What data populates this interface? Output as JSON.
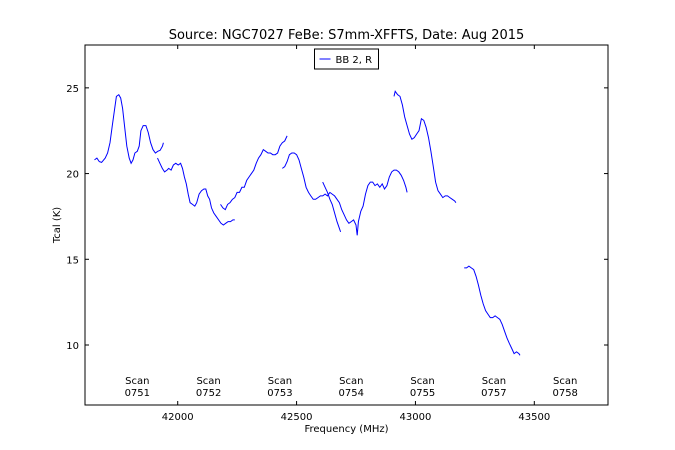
{
  "chart_data": {
    "type": "line",
    "title": "Source: NGC7027 FeBe: S7mm-XFFTS, Date: Aug 2015",
    "xlabel": "Frequency (MHz)",
    "ylabel": "Tcal (K)",
    "xlim": [
      41610,
      43810
    ],
    "ylim": [
      6.5,
      27.5
    ],
    "x_ticks": [
      42000,
      42500,
      43000,
      43500
    ],
    "y_ticks": [
      10,
      15,
      20,
      25
    ],
    "grid": false,
    "legend": {
      "placement": "top-center",
      "entries": [
        "BB 2, R"
      ]
    },
    "series_color": "#0000ff",
    "scan_labels": [
      {
        "line1": "Scan",
        "line2": "0751",
        "x": 41830
      },
      {
        "line1": "Scan",
        "line2": "0752",
        "x": 42130
      },
      {
        "line1": "Scan",
        "line2": "0753",
        "x": 42430
      },
      {
        "line1": "Scan",
        "line2": "0754",
        "x": 42730
      },
      {
        "line1": "Scan",
        "line2": "0755",
        "x": 43030
      },
      {
        "line1": "Scan",
        "line2": "0757",
        "x": 43330
      },
      {
        "line1": "Scan",
        "line2": "0758",
        "x": 43630
      }
    ],
    "series": [
      {
        "name": "BB 2, R",
        "segments": [
          [
            [
              41650,
              20.8
            ],
            [
              41660,
              20.9
            ],
            [
              41670,
              20.7
            ],
            [
              41680,
              20.65
            ],
            [
              41695,
              20.9
            ],
            [
              41705,
              21.2
            ],
            [
              41715,
              21.8
            ],
            [
              41725,
              22.8
            ],
            [
              41735,
              23.8
            ],
            [
              41742,
              24.5
            ],
            [
              41752,
              24.6
            ],
            [
              41760,
              24.4
            ],
            [
              41768,
              23.8
            ],
            [
              41776,
              22.8
            ],
            [
              41786,
              21.6
            ],
            [
              41796,
              20.9
            ],
            [
              41804,
              20.6
            ],
            [
              41812,
              20.8
            ],
            [
              41820,
              21.2
            ],
            [
              41830,
              21.3
            ],
            [
              41838,
              21.6
            ],
            [
              41845,
              22.5
            ],
            [
              41855,
              22.8
            ],
            [
              41866,
              22.8
            ],
            [
              41876,
              22.4
            ],
            [
              41886,
              21.8
            ],
            [
              41896,
              21.4
            ],
            [
              41906,
              21.2
            ],
            [
              41916,
              21.3
            ],
            [
              41926,
              21.35
            ],
            [
              41936,
              21.6
            ],
            [
              41940,
              21.8
            ]
          ],
          [
            [
              41915,
              20.9
            ],
            [
              41925,
              20.6
            ],
            [
              41935,
              20.3
            ],
            [
              41945,
              20.1
            ],
            [
              41955,
              20.2
            ],
            [
              41962,
              20.3
            ],
            [
              41972,
              20.2
            ],
            [
              41982,
              20.5
            ],
            [
              41992,
              20.6
            ],
            [
              42002,
              20.5
            ],
            [
              42012,
              20.6
            ],
            [
              42020,
              20.3
            ],
            [
              42028,
              19.8
            ],
            [
              42036,
              19.4
            ],
            [
              42044,
              18.8
            ],
            [
              42052,
              18.3
            ],
            [
              42062,
              18.2
            ],
            [
              42072,
              18.1
            ],
            [
              42080,
              18.3
            ],
            [
              42090,
              18.8
            ],
            [
              42100,
              19.0
            ],
            [
              42110,
              19.1
            ],
            [
              42118,
              19.1
            ],
            [
              42126,
              18.7
            ],
            [
              42134,
              18.5
            ],
            [
              42142,
              18.0
            ],
            [
              42152,
              17.7
            ],
            [
              42162,
              17.5
            ],
            [
              42172,
              17.3
            ],
            [
              42182,
              17.1
            ],
            [
              42192,
              17.0
            ],
            [
              42202,
              17.1
            ],
            [
              42212,
              17.2
            ],
            [
              42222,
              17.2
            ],
            [
              42232,
              17.3
            ],
            [
              42240,
              17.3
            ]
          ],
          [
            [
              42180,
              18.2
            ],
            [
              42190,
              18.0
            ],
            [
              42200,
              17.9
            ],
            [
              42210,
              18.2
            ],
            [
              42220,
              18.3
            ],
            [
              42230,
              18.5
            ],
            [
              42240,
              18.6
            ],
            [
              42250,
              18.9
            ],
            [
              42260,
              18.9
            ],
            [
              42270,
              19.2
            ],
            [
              42280,
              19.2
            ],
            [
              42290,
              19.6
            ],
            [
              42300,
              19.8
            ],
            [
              42310,
              20.0
            ],
            [
              42320,
              20.2
            ],
            [
              42330,
              20.6
            ],
            [
              42340,
              20.9
            ],
            [
              42350,
              21.1
            ],
            [
              42360,
              21.4
            ],
            [
              42370,
              21.3
            ],
            [
              42380,
              21.2
            ],
            [
              42390,
              21.2
            ],
            [
              42400,
              21.1
            ],
            [
              42410,
              21.1
            ],
            [
              42420,
              21.2
            ],
            [
              42430,
              21.6
            ],
            [
              42440,
              21.8
            ],
            [
              42450,
              21.9
            ],
            [
              42460,
              22.2
            ]
          ],
          [
            [
              42440,
              20.3
            ],
            [
              42450,
              20.4
            ],
            [
              42460,
              20.7
            ],
            [
              42470,
              21.1
            ],
            [
              42480,
              21.2
            ],
            [
              42490,
              21.2
            ],
            [
              42500,
              21.1
            ],
            [
              42510,
              20.8
            ],
            [
              42520,
              20.3
            ],
            [
              42530,
              19.8
            ],
            [
              42540,
              19.2
            ],
            [
              42550,
              18.9
            ],
            [
              42560,
              18.7
            ],
            [
              42570,
              18.5
            ],
            [
              42580,
              18.5
            ],
            [
              42590,
              18.6
            ],
            [
              42600,
              18.7
            ],
            [
              42610,
              18.7
            ],
            [
              42620,
              18.8
            ],
            [
              42630,
              18.7
            ],
            [
              42640,
              18.9
            ],
            [
              42650,
              18.8
            ],
            [
              42660,
              18.7
            ],
            [
              42670,
              18.5
            ],
            [
              42680,
              18.3
            ],
            [
              42690,
              17.9
            ],
            [
              42700,
              17.6
            ],
            [
              42710,
              17.3
            ],
            [
              42720,
              17.1
            ],
            [
              42730,
              17.2
            ],
            [
              42740,
              17.3
            ],
            [
              42750,
              17.0
            ],
            [
              42755,
              16.4
            ],
            [
              42760,
              17.2
            ],
            [
              42770,
              17.8
            ],
            [
              42780,
              18.1
            ],
            [
              42790,
              18.8
            ],
            [
              42800,
              19.3
            ],
            [
              42810,
              19.5
            ],
            [
              42820,
              19.5
            ],
            [
              42830,
              19.3
            ],
            [
              42840,
              19.4
            ],
            [
              42850,
              19.2
            ],
            [
              42860,
              19.4
            ],
            [
              42870,
              19.1
            ],
            [
              42880,
              19.3
            ],
            [
              42890,
              19.8
            ],
            [
              42900,
              20.1
            ],
            [
              42910,
              20.2
            ],
            [
              42920,
              20.2
            ],
            [
              42930,
              20.1
            ],
            [
              42940,
              19.9
            ],
            [
              42950,
              19.6
            ],
            [
              42960,
              19.2
            ],
            [
              42965,
              18.9
            ]
          ],
          [
            [
              42610,
              19.5
            ],
            [
              42620,
              19.2
            ],
            [
              42630,
              18.9
            ],
            [
              42640,
              18.5
            ],
            [
              42650,
              18.2
            ],
            [
              42660,
              17.7
            ],
            [
              42670,
              17.2
            ],
            [
              42680,
              16.8
            ],
            [
              42685,
              16.6
            ]
          ],
          [
            [
              42910,
              24.5
            ],
            [
              42915,
              24.8
            ],
            [
              42925,
              24.6
            ],
            [
              42935,
              24.5
            ],
            [
              42945,
              24.0
            ],
            [
              42955,
              23.3
            ],
            [
              42965,
              22.8
            ],
            [
              42975,
              22.3
            ],
            [
              42985,
              22.0
            ],
            [
              42995,
              22.1
            ],
            [
              43005,
              22.3
            ],
            [
              43015,
              22.5
            ],
            [
              43025,
              23.2
            ],
            [
              43035,
              23.1
            ],
            [
              43045,
              22.7
            ],
            [
              43055,
              22.1
            ],
            [
              43065,
              21.3
            ],
            [
              43075,
              20.4
            ],
            [
              43085,
              19.5
            ],
            [
              43095,
              19.0
            ],
            [
              43105,
              18.8
            ],
            [
              43115,
              18.6
            ],
            [
              43125,
              18.7
            ],
            [
              43135,
              18.7
            ],
            [
              43145,
              18.6
            ],
            [
              43155,
              18.5
            ],
            [
              43165,
              18.4
            ],
            [
              43170,
              18.3
            ]
          ],
          [
            [
              43205,
              14.5
            ],
            [
              43215,
              14.5
            ],
            [
              43225,
              14.6
            ],
            [
              43235,
              14.5
            ],
            [
              43245,
              14.4
            ],
            [
              43255,
              14.0
            ],
            [
              43265,
              13.5
            ],
            [
              43275,
              12.9
            ],
            [
              43285,
              12.4
            ],
            [
              43295,
              12.0
            ],
            [
              43305,
              11.8
            ],
            [
              43315,
              11.6
            ],
            [
              43325,
              11.6
            ],
            [
              43335,
              11.7
            ],
            [
              43345,
              11.6
            ],
            [
              43355,
              11.5
            ],
            [
              43365,
              11.2
            ],
            [
              43375,
              10.8
            ],
            [
              43385,
              10.4
            ],
            [
              43395,
              10.1
            ],
            [
              43405,
              9.8
            ],
            [
              43415,
              9.5
            ],
            [
              43425,
              9.6
            ],
            [
              43435,
              9.5
            ],
            [
              43440,
              9.4
            ]
          ]
        ]
      }
    ]
  }
}
